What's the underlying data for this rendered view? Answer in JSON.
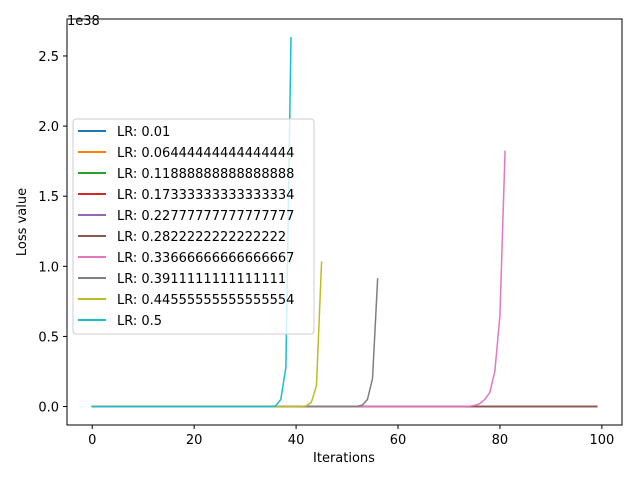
{
  "chart_data": {
    "type": "line",
    "title": "",
    "xlabel": "Iterations",
    "ylabel": "Loss value",
    "y_offset_label": "1e38",
    "y_scale_exponent": 38,
    "xlim": [
      -4.95,
      103.95
    ],
    "ylim": [
      -0.1316,
      2.7636
    ],
    "x_ticks": [
      0,
      20,
      40,
      60,
      80,
      100
    ],
    "y_ticks": [
      0.0,
      0.5,
      1.0,
      1.5,
      2.0,
      2.5
    ],
    "x_tick_labels": [
      "0",
      "20",
      "40",
      "60",
      "80",
      "100"
    ],
    "y_tick_labels": [
      "0.0",
      "0.5",
      "1.0",
      "1.5",
      "2.0",
      "2.5"
    ],
    "grid": false,
    "legend_position": "center-left",
    "series": [
      {
        "name": "LR: 0.01",
        "color": "#1f77b4",
        "points": [
          [
            0,
            0
          ],
          [
            99,
            0
          ]
        ]
      },
      {
        "name": "LR: 0.06444444444444444",
        "color": "#ff7f0e",
        "points": [
          [
            0,
            0
          ],
          [
            99,
            0
          ]
        ]
      },
      {
        "name": "LR: 0.11888888888888888",
        "color": "#2ca02c",
        "points": [
          [
            0,
            0
          ],
          [
            99,
            0
          ]
        ]
      },
      {
        "name": "LR: 0.17333333333333334",
        "color": "#d62728",
        "points": [
          [
            0,
            0
          ],
          [
            99,
            0
          ]
        ]
      },
      {
        "name": "LR: 0.22777777777777777",
        "color": "#9467bd",
        "points": [
          [
            0,
            0
          ],
          [
            99,
            0
          ]
        ]
      },
      {
        "name": "LR: 0.2822222222222222",
        "color": "#8c564b",
        "points": [
          [
            0,
            0
          ],
          [
            99,
            0
          ]
        ]
      },
      {
        "name": "LR: 0.33666666666666667",
        "color": "#e377c2",
        "points": [
          [
            0,
            0
          ],
          [
            73,
            0
          ],
          [
            74,
            0.002
          ],
          [
            75,
            0.008
          ],
          [
            76,
            0.02
          ],
          [
            77,
            0.05
          ],
          [
            78,
            0.1
          ],
          [
            79,
            0.25
          ],
          [
            80,
            0.65
          ],
          [
            81,
            1.82
          ]
        ]
      },
      {
        "name": "LR: 0.3911111111111111",
        "color": "#7f7f7f",
        "points": [
          [
            0,
            0
          ],
          [
            51,
            0
          ],
          [
            52,
            0.002
          ],
          [
            53,
            0.01
          ],
          [
            54,
            0.05
          ],
          [
            55,
            0.2
          ],
          [
            56,
            0.91
          ]
        ]
      },
      {
        "name": "LR: 0.44555555555555554",
        "color": "#bcbd22",
        "points": [
          [
            0,
            0
          ],
          [
            41,
            0
          ],
          [
            42,
            0.005
          ],
          [
            43,
            0.03
          ],
          [
            44,
            0.15
          ],
          [
            45,
            1.03
          ]
        ]
      },
      {
        "name": "LR: 0.5",
        "color": "#17becf",
        "points": [
          [
            0,
            0
          ],
          [
            35,
            0
          ],
          [
            36,
            0.005
          ],
          [
            37,
            0.05
          ],
          [
            38,
            0.28
          ],
          [
            39,
            2.63
          ]
        ]
      }
    ]
  }
}
